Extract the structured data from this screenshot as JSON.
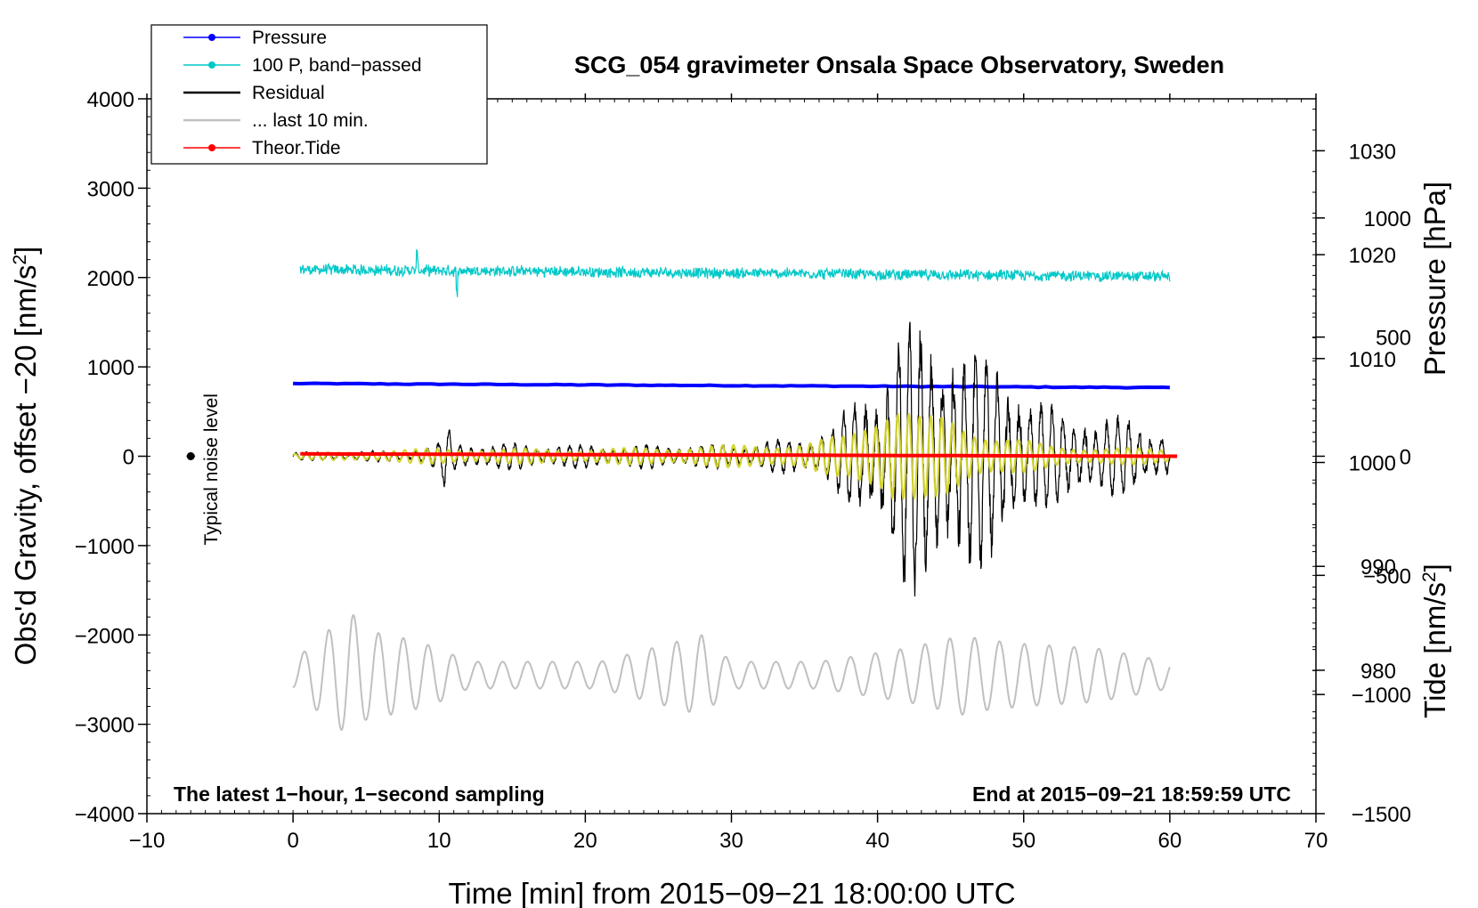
{
  "chart_data": {
    "type": "line",
    "title": "SCG_054 gravimeter Onsala Space Observatory, Sweden",
    "xlabel": "Time [min] from 2015−09−21 18:00:00 UTC",
    "ylabel_left_main": "Obs'd Gravity, offset −20 [nm/s",
    "ylabel_left_sup": "2",
    "ylabel_left_tail": "]",
    "ylabel_right_pressure": "Pressure [hPa]",
    "ylabel_right_tide_main": "Tide [nm/s",
    "ylabel_right_tide_sup": "2",
    "ylabel_right_tide_tail": "]",
    "xlim": [
      -10,
      70
    ],
    "ylim": [
      -4000,
      4000
    ],
    "pressure_ylim": [
      966.2,
      1035.0
    ],
    "tide_ylim": [
      -1500,
      1500
    ],
    "x_ticks": [
      -10,
      0,
      10,
      20,
      30,
      40,
      50,
      60,
      70
    ],
    "x_tick_labels": [
      "−10",
      "0",
      "10",
      "20",
      "30",
      "40",
      "50",
      "60",
      "70"
    ],
    "y_ticks": [
      -4000,
      -3000,
      -2000,
      -1000,
      0,
      1000,
      2000,
      3000,
      4000
    ],
    "y_tick_labels": [
      "−4000",
      "−3000",
      "−2000",
      "−1000",
      "0",
      "1000",
      "2000",
      "3000",
      "4000"
    ],
    "pressure_ticks": [
      980,
      990,
      1000,
      1010,
      1020,
      1030
    ],
    "pressure_tick_labels": [
      "980",
      "990",
      "1000",
      "1010",
      "1020",
      "1030"
    ],
    "tide_ticks": [
      -1500,
      -1000,
      -500,
      0,
      500,
      1000
    ],
    "tide_tick_labels": [
      "−1500",
      "−1000",
      "−500",
      "0",
      "500",
      "1000"
    ],
    "legend_position": "top-left",
    "legend": [
      {
        "label": "Pressure",
        "color": "#0000ff",
        "marker": "dot"
      },
      {
        "label": "100 P, band−passed",
        "color": "#00c8c8",
        "marker": "dot"
      },
      {
        "label": "Residual",
        "color": "#000000",
        "marker": "none"
      },
      {
        "label": "... last 10 min.",
        "color": "#c0c0c0",
        "marker": "none"
      },
      {
        "label": "Theor.Tide",
        "color": "#ff0000",
        "marker": "dot"
      }
    ],
    "annotations": {
      "noise_label": "Typical noise level",
      "noise_point": {
        "x": -7,
        "y": 0
      },
      "footer_left": "The latest 1−hour, 1−second sampling",
      "footer_right": "End at 2015−09−21 18:59:59 UTC"
    },
    "series": [
      {
        "name": "Pressure",
        "axis": "pressure",
        "color": "#0000ff",
        "x_range": [
          0,
          60
        ],
        "start": 1007.6,
        "end": 1007.2,
        "unit": "hPa"
      },
      {
        "name": "100 P, band−passed",
        "axis": "gravity",
        "color": "#00c8c8",
        "x_range": [
          0.5,
          60
        ],
        "baseline": 2050,
        "amplitude": 60
      },
      {
        "name": "Residual",
        "axis": "gravity",
        "color": "#000000",
        "x_range": [
          0,
          60
        ],
        "envelope_x": [
          0,
          8,
          10,
          10.5,
          11,
          20,
          30,
          35,
          37,
          39,
          40.5,
          41.5,
          43,
          45,
          46,
          48,
          49.5,
          51,
          54,
          55,
          57.5,
          58.5,
          60
        ],
        "envelope_amp": [
          40,
          60,
          150,
          400,
          150,
          120,
          130,
          200,
          350,
          650,
          1100,
          1500,
          1300,
          1500,
          1200,
          1100,
          900,
          550,
          500,
          350,
          450,
          350,
          200
        ],
        "period_min": 0.75
      },
      {
        "name": "Residual (filtered)",
        "axis": "gravity",
        "color": "#d4d42a",
        "x_range": [
          0,
          60
        ],
        "envelope_x": [
          0,
          10,
          20,
          35,
          38,
          41,
          43,
          45,
          48,
          52,
          60
        ],
        "envelope_amp": [
          30,
          90,
          80,
          150,
          250,
          700,
          450,
          450,
          250,
          120,
          80
        ]
      },
      {
        "name": "... last 10 min.",
        "axis": "gravity",
        "color": "#c0c0c0",
        "x_range": [
          0,
          60
        ],
        "baseline": -2450,
        "envelope_x": [
          0,
          2,
          4,
          5,
          8,
          10,
          12,
          20,
          21,
          28,
          30,
          36,
          42,
          46,
          47,
          50,
          55,
          60
        ],
        "envelope_amp": [
          150,
          450,
          700,
          500,
          400,
          300,
          150,
          150,
          150,
          450,
          150,
          150,
          300,
          450,
          400,
          350,
          300,
          150
        ],
        "period_min": 1.7
      },
      {
        "name": "Theor.Tide",
        "axis": "tide",
        "color": "#ff0000",
        "x_range": [
          0.5,
          60.5
        ],
        "start": 10,
        "end": 0,
        "unit": "nm/s2"
      }
    ]
  }
}
